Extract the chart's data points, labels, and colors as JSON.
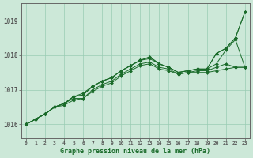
{
  "background_color": "#cce8d8",
  "grid_color": "#99ccb3",
  "line_color": "#1a6b2a",
  "marker_color": "#1a6b2a",
  "title": "Graphe pression niveau de la mer (hPa)",
  "xlabel_ticks": [
    0,
    1,
    2,
    3,
    4,
    5,
    6,
    7,
    8,
    9,
    10,
    11,
    12,
    13,
    14,
    15,
    16,
    17,
    18,
    19,
    20,
    21,
    22,
    23
  ],
  "ylim": [
    1015.6,
    1019.5
  ],
  "yticks": [
    1016,
    1017,
    1018,
    1019
  ],
  "series": [
    [
      1016.0,
      1016.15,
      1016.3,
      1016.5,
      1016.55,
      1016.7,
      1016.75,
      1016.95,
      1017.1,
      1017.2,
      1017.4,
      1017.55,
      1017.7,
      1017.75,
      1017.6,
      1017.55,
      1017.45,
      1017.5,
      1017.5,
      1017.5,
      1017.55,
      1017.6,
      1017.65,
      1017.65
    ],
    [
      1016.0,
      1016.15,
      1016.3,
      1016.5,
      1016.6,
      1016.75,
      1016.75,
      1017.0,
      1017.15,
      1017.25,
      1017.45,
      1017.6,
      1017.75,
      1017.8,
      1017.65,
      1017.6,
      1017.45,
      1017.5,
      1017.55,
      1017.55,
      1017.65,
      1017.75,
      1017.65,
      1017.65
    ],
    [
      1016.0,
      1016.15,
      1016.3,
      1016.5,
      1016.6,
      1016.8,
      1016.9,
      1017.1,
      1017.25,
      1017.35,
      1017.55,
      1017.7,
      1017.85,
      1017.9,
      1017.75,
      1017.65,
      1017.5,
      1017.55,
      1017.6,
      1017.6,
      1017.75,
      1018.15,
      1018.45,
      1017.65
    ],
    [
      1016.0,
      1016.15,
      1016.3,
      1016.5,
      1016.6,
      1016.8,
      1016.85,
      1017.1,
      1017.25,
      1017.35,
      1017.55,
      1017.7,
      1017.85,
      1017.95,
      1017.75,
      1017.65,
      1017.5,
      1017.55,
      1017.6,
      1017.6,
      1018.05,
      1018.2,
      1018.5,
      1019.25
    ],
    [
      1016.0,
      1016.15,
      1016.3,
      1016.5,
      1016.6,
      1016.8,
      1016.85,
      1017.1,
      1017.25,
      1017.35,
      1017.55,
      1017.7,
      1017.85,
      1017.95,
      1017.75,
      1017.65,
      1017.5,
      1017.55,
      1017.6,
      1017.6,
      1018.05,
      1018.2,
      1018.5,
      1019.25
    ]
  ]
}
